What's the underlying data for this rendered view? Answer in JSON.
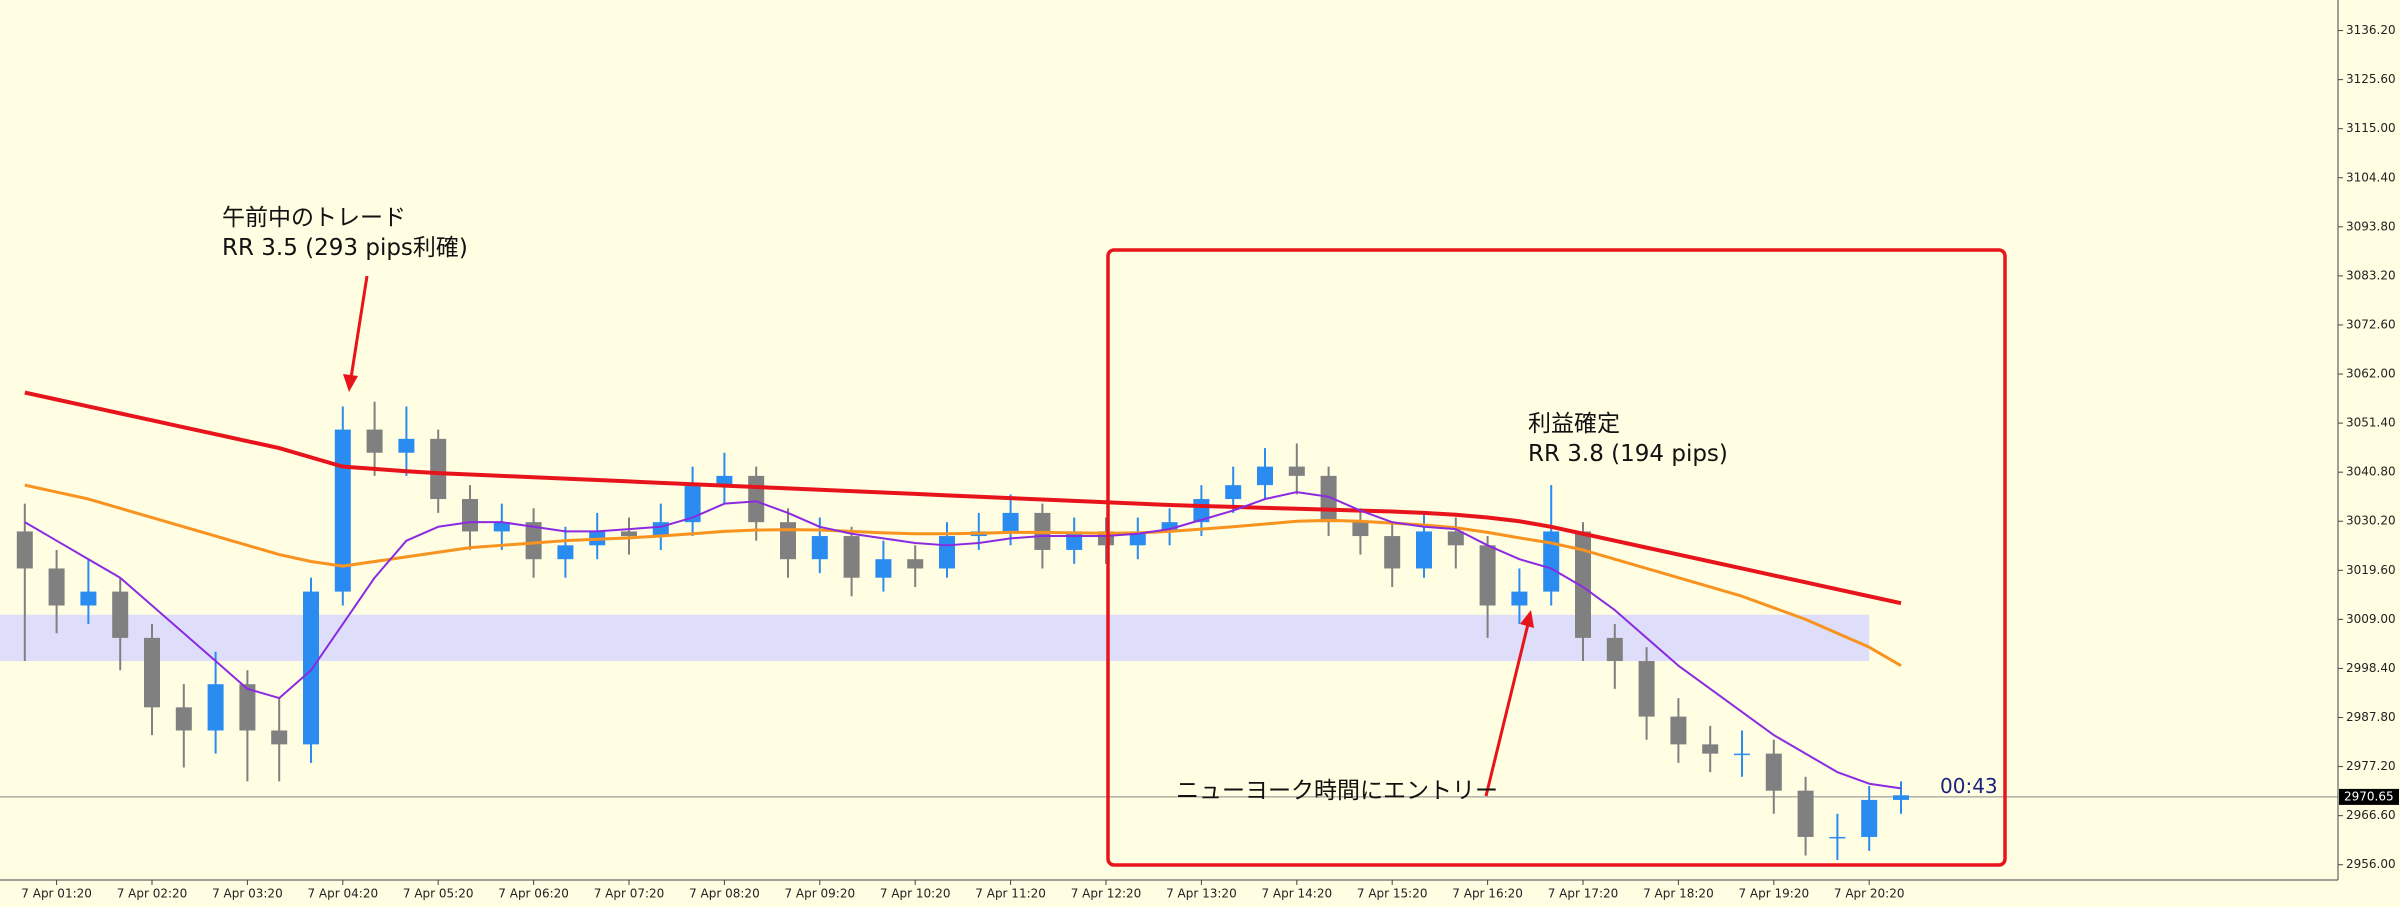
{
  "chart_data": {
    "type": "candlestick",
    "x": [
      "7 Apr 01:00",
      "7 Apr 01:20",
      "7 Apr 01:40",
      "7 Apr 02:00",
      "7 Apr 02:20",
      "7 Apr 02:40",
      "7 Apr 03:00",
      "7 Apr 03:20",
      "7 Apr 03:40",
      "7 Apr 04:00",
      "7 Apr 04:20",
      "7 Apr 04:40",
      "7 Apr 05:00",
      "7 Apr 05:20",
      "7 Apr 05:40",
      "7 Apr 06:00",
      "7 Apr 06:20",
      "7 Apr 06:40",
      "7 Apr 07:00",
      "7 Apr 07:20",
      "7 Apr 07:40",
      "7 Apr 08:00",
      "7 Apr 08:20",
      "7 Apr 08:40",
      "7 Apr 09:00",
      "7 Apr 09:20",
      "7 Apr 09:40",
      "7 Apr 10:00",
      "7 Apr 10:20",
      "7 Apr 10:40",
      "7 Apr 11:00",
      "7 Apr 11:20",
      "7 Apr 11:40",
      "7 Apr 12:00",
      "7 Apr 12:20",
      "7 Apr 12:40",
      "7 Apr 13:00",
      "7 Apr 13:20",
      "7 Apr 13:40",
      "7 Apr 14:00",
      "7 Apr 14:20",
      "7 Apr 14:40",
      "7 Apr 15:00",
      "7 Apr 15:20",
      "7 Apr 15:40",
      "7 Apr 16:00",
      "7 Apr 16:20",
      "7 Apr 16:40",
      "7 Apr 17:00",
      "7 Apr 17:20",
      "7 Apr 17:40",
      "7 Apr 18:00",
      "7 Apr 18:20",
      "7 Apr 18:40",
      "7 Apr 19:00",
      "7 Apr 19:20",
      "7 Apr 19:40",
      "7 Apr 20:00",
      "7 Apr 20:20",
      "7 Apr 20:40"
    ],
    "open": [
      3028,
      3020,
      3012,
      3015,
      3005,
      2990,
      2985,
      2995,
      2985,
      2982,
      3015,
      3050,
      3045,
      3048,
      3035,
      3028,
      3030,
      3022,
      3025,
      3028,
      3027,
      3030,
      3038,
      3040,
      3030,
      3022,
      3027,
      3018,
      3022,
      3020,
      3027,
      3028,
      3032,
      3024,
      3028,
      3025,
      3028,
      3030,
      3035,
      3038,
      3042,
      3040,
      3030,
      3027,
      3020,
      3028,
      3025,
      3012,
      3015,
      3028,
      3005,
      3000,
      2988,
      2982,
      2980,
      2980,
      2972,
      2962,
      2962,
      2970
    ],
    "high": [
      3034,
      3024,
      3022,
      3018,
      3008,
      2995,
      3002,
      2998,
      2992,
      3018,
      3055,
      3056,
      3055,
      3050,
      3038,
      3034,
      3033,
      3029,
      3032,
      3031,
      3034,
      3042,
      3045,
      3042,
      3033,
      3031,
      3029,
      3026,
      3025,
      3030,
      3032,
      3036,
      3034,
      3031,
      3031,
      3031,
      3033,
      3038,
      3042,
      3046,
      3047,
      3042,
      3033,
      3030,
      3032,
      3031,
      3027,
      3020,
      3038,
      3030,
      3008,
      3003,
      2992,
      2986,
      2985,
      2983,
      2975,
      2967,
      2973,
      2974
    ],
    "low": [
      3000,
      3006,
      3008,
      2998,
      2984,
      2977,
      2980,
      2974,
      2974,
      2978,
      3012,
      3040,
      3040,
      3032,
      3024,
      3024,
      3018,
      3018,
      3022,
      3023,
      3024,
      3027,
      3034,
      3026,
      3018,
      3019,
      3014,
      3015,
      3016,
      3018,
      3024,
      3025,
      3020,
      3021,
      3021,
      3022,
      3025,
      3027,
      3032,
      3035,
      3036,
      3027,
      3023,
      3016,
      3018,
      3020,
      3005,
      3008,
      3012,
      3000,
      2994,
      2983,
      2978,
      2976,
      2975,
      2967,
      2958,
      2957,
      2959,
      2967
    ],
    "close": [
      3020,
      3012,
      3015,
      3005,
      2990,
      2985,
      2995,
      2985,
      2982,
      3015,
      3050,
      3045,
      3048,
      3035,
      3028,
      3030,
      3022,
      3025,
      3028,
      3027,
      3030,
      3038,
      3040,
      3030,
      3022,
      3027,
      3018,
      3022,
      3020,
      3027,
      3028,
      3032,
      3024,
      3028,
      3025,
      3028,
      3030,
      3035,
      3038,
      3042,
      3040,
      3030,
      3027,
      3020,
      3028,
      3025,
      3012,
      3015,
      3028,
      3005,
      3000,
      2988,
      2982,
      2980,
      2980,
      2972,
      2962,
      2962,
      2970,
      2971
    ],
    "up_color": "#2a8cf0",
    "down_color": "#808080",
    "lines": [
      {
        "color": "#e8141b",
        "width": 4,
        "values": [
          3058,
          3056.5,
          3055,
          3053.5,
          3052,
          3050.5,
          3049,
          3047.5,
          3046,
          3044,
          3042,
          3041.5,
          3041,
          3040.6,
          3040.3,
          3040,
          3039.7,
          3039.4,
          3039.1,
          3038.8,
          3038.5,
          3038.2,
          3037.9,
          3037.6,
          3037.3,
          3037,
          3036.7,
          3036.4,
          3036.1,
          3035.8,
          3035.5,
          3035.2,
          3034.9,
          3034.6,
          3034.3,
          3034,
          3033.7,
          3033.5,
          3033.3,
          3033.1,
          3032.9,
          3032.7,
          3032.5,
          3032.3,
          3032,
          3031.6,
          3031,
          3030.2,
          3029,
          3027.5,
          3026,
          3024.5,
          3023,
          3021.5,
          3020,
          3018.5,
          3017,
          3015.5,
          3014,
          3012.5
        ]
      },
      {
        "color": "#f7931e",
        "width": 3,
        "values": [
          3038,
          3036.5,
          3035,
          3033,
          3031,
          3029,
          3027,
          3025,
          3023,
          3021.5,
          3020.5,
          3021.5,
          3022.5,
          3023.5,
          3024.5,
          3025,
          3025.5,
          3026,
          3026.3,
          3026.6,
          3027,
          3027.5,
          3028,
          3028.3,
          3028.4,
          3028.3,
          3028,
          3027.7,
          3027.5,
          3027.5,
          3027.6,
          3027.8,
          3027.8,
          3027.7,
          3027.6,
          3027.7,
          3028,
          3028.5,
          3029,
          3029.6,
          3030.2,
          3030.4,
          3030.2,
          3029.8,
          3029.4,
          3028.8,
          3027.8,
          3026.6,
          3025.5,
          3024,
          3022,
          3020,
          3018,
          3016,
          3014,
          3011.5,
          3009,
          3006,
          3003,
          2999
        ]
      },
      {
        "color": "#8a2be2",
        "width": 2,
        "values": [
          3030,
          3026,
          3022,
          3018,
          3012,
          3006,
          3000,
          2994,
          2992,
          2998,
          3008,
          3018,
          3026,
          3029,
          3030,
          3030,
          3029,
          3028,
          3028,
          3028.5,
          3029,
          3031,
          3034,
          3034.5,
          3032,
          3029,
          3027.5,
          3026.5,
          3025.5,
          3025,
          3025.5,
          3026.5,
          3027,
          3027,
          3027,
          3027.5,
          3028.5,
          3030.5,
          3032.5,
          3035,
          3036.5,
          3035.5,
          3032.5,
          3030,
          3029,
          3028.5,
          3025,
          3022,
          3020,
          3016,
          3011,
          3005,
          2999,
          2994,
          2989,
          2984,
          2980,
          2976,
          2973.5,
          2972.5
        ]
      }
    ],
    "zone": {
      "low": 3000,
      "high": 3010,
      "x_end": "7 Apr 20:20",
      "color": "#dedefa"
    },
    "ylim": [
      2952.7,
      3142.8
    ],
    "yticks": [
      {
        "value": 3136.2,
        "label": "3136.20"
      },
      {
        "value": 3125.6,
        "label": "3125.60"
      },
      {
        "value": 3115,
        "label": "3115.00"
      },
      {
        "value": 3104.4,
        "label": "3104.40"
      },
      {
        "value": 3093.8,
        "label": "3093.80"
      },
      {
        "value": 3083.2,
        "label": "3083.20"
      },
      {
        "value": 3072.6,
        "label": "3072.60"
      },
      {
        "value": 3062,
        "label": "3062.00"
      },
      {
        "value": 3051.4,
        "label": "3051.40"
      },
      {
        "value": 3040.8,
        "label": "3040.80"
      },
      {
        "value": 3030.2,
        "label": "3030.20"
      },
      {
        "value": 3019.6,
        "label": "3019.60"
      },
      {
        "value": 3009,
        "label": "3009.00"
      },
      {
        "value": 2998.4,
        "label": "2998.40"
      },
      {
        "value": 2987.8,
        "label": "2987.80"
      },
      {
        "value": 2977.2,
        "label": "2977.20"
      },
      {
        "value": 2966.6,
        "label": "2966.60"
      },
      {
        "value": 2956,
        "label": "2956.00"
      }
    ],
    "xticks": [
      "7 Apr 01:20",
      "7 Apr 02:20",
      "7 Apr 03:20",
      "7 Apr 04:20",
      "7 Apr 05:20",
      "7 Apr 06:20",
      "7 Apr 07:20",
      "7 Apr 08:20",
      "7 Apr 09:20",
      "7 Apr 10:20",
      "7 Apr 11:20",
      "7 Apr 12:20",
      "7 Apr 13:20",
      "7 Apr 14:20",
      "7 Apr 15:20",
      "7 Apr 16:20",
      "7 Apr 17:20",
      "7 Apr 18:20",
      "7 Apr 19:20",
      "7 Apr 20:20"
    ],
    "current_price": {
      "value": 2970.65,
      "label": "2970.65"
    },
    "countdown": "00:43",
    "annotations": [
      "午前中のトレード",
      "RR 3.5 (293 pips利確)",
      "利益確定",
      "RR 3.8 (194 pips)",
      "ニューヨーク時間にエントリー"
    ]
  }
}
